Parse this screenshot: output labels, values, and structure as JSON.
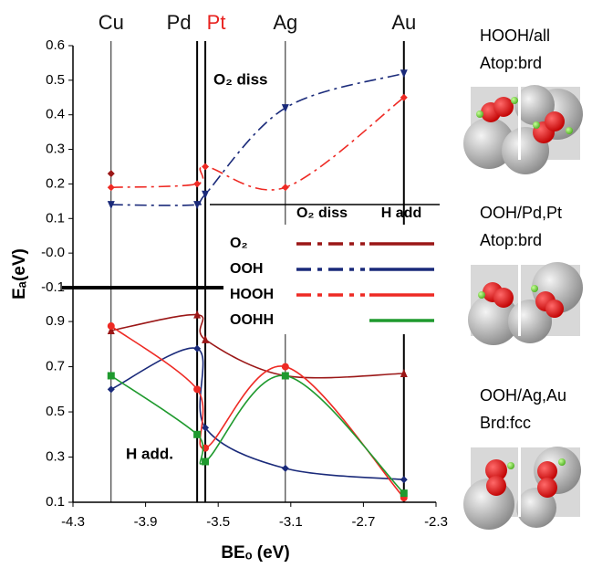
{
  "chart_data": [
    {
      "type": "line",
      "annotation": "O₂ diss",
      "legend_title": "O₂ diss",
      "elements": [
        "Cu",
        "Pd",
        "Pt",
        "Ag",
        "Au"
      ],
      "element_colors": [
        "#111111",
        "#111111",
        "#e8221f",
        "#111111",
        "#111111"
      ],
      "x": [
        -4.09,
        -3.616,
        -3.571,
        -3.13,
        -2.477
      ],
      "xlim": [
        -4.3,
        -2.3
      ],
      "ylim": [
        -0.1,
        0.6
      ],
      "yticks": [
        0.6,
        0.5,
        0.4,
        0.3,
        0.2,
        0.1,
        {
          "value": 0,
          "label": "-0.0"
        },
        -0.1
      ],
      "series": [
        {
          "color": "#9b1717",
          "marker": "diamond",
          "values": [
            0.23,
            null,
            null,
            null,
            null
          ]
        },
        {
          "color": "#1a2a7a",
          "marker": "triangle-down",
          "values": [
            0.14,
            0.14,
            0.17,
            0.42,
            0.52
          ]
        },
        {
          "color": "#ee2a24",
          "marker": "diamond",
          "values": [
            0.19,
            0.2,
            0.25,
            0.19,
            0.45
          ]
        }
      ]
    },
    {
      "type": "line",
      "annotation": "H add.",
      "legend_title": "H add",
      "x": [
        -4.09,
        -3.616,
        -3.571,
        -3.13,
        -2.477
      ],
      "xlim": [
        -4.3,
        -2.3
      ],
      "xticks": [
        -4.3,
        -3.9,
        -3.5,
        -3.1,
        -2.7,
        -2.3
      ],
      "xlabel": "BEₒ (eV)",
      "ylabel": "Eₐ(eV)",
      "ylim": [
        0.1,
        1.05
      ],
      "yticks": [
        0.9,
        0.7,
        0.5,
        0.3,
        0.1
      ],
      "series": [
        {
          "name": "O₂",
          "color": "#9b1717",
          "marker": "triangle",
          "values": [
            0.86,
            0.93,
            0.82,
            0.66,
            0.67
          ]
        },
        {
          "name": "OOH",
          "color": "#1a2a7a",
          "marker": "diamond",
          "values": [
            0.6,
            0.78,
            0.43,
            0.25,
            0.2
          ]
        },
        {
          "name": "HOOH",
          "color": "#ee2a24",
          "marker": "circle",
          "values": [
            0.88,
            0.6,
            0.34,
            0.7,
            0.12
          ]
        },
        {
          "name": "OOHH",
          "color": "#1f9a2e",
          "marker": "square",
          "values": [
            0.66,
            0.4,
            0.28,
            0.66,
            0.14
          ]
        }
      ]
    }
  ],
  "side_panels": [
    {
      "lines": [
        "HOOH/all",
        "Atop:brd"
      ]
    },
    {
      "lines": [
        "OOH/Pd,Pt",
        "Atop:brd"
      ]
    },
    {
      "lines": [
        "OOH/Ag,Au",
        "Brd:fcc"
      ]
    }
  ]
}
